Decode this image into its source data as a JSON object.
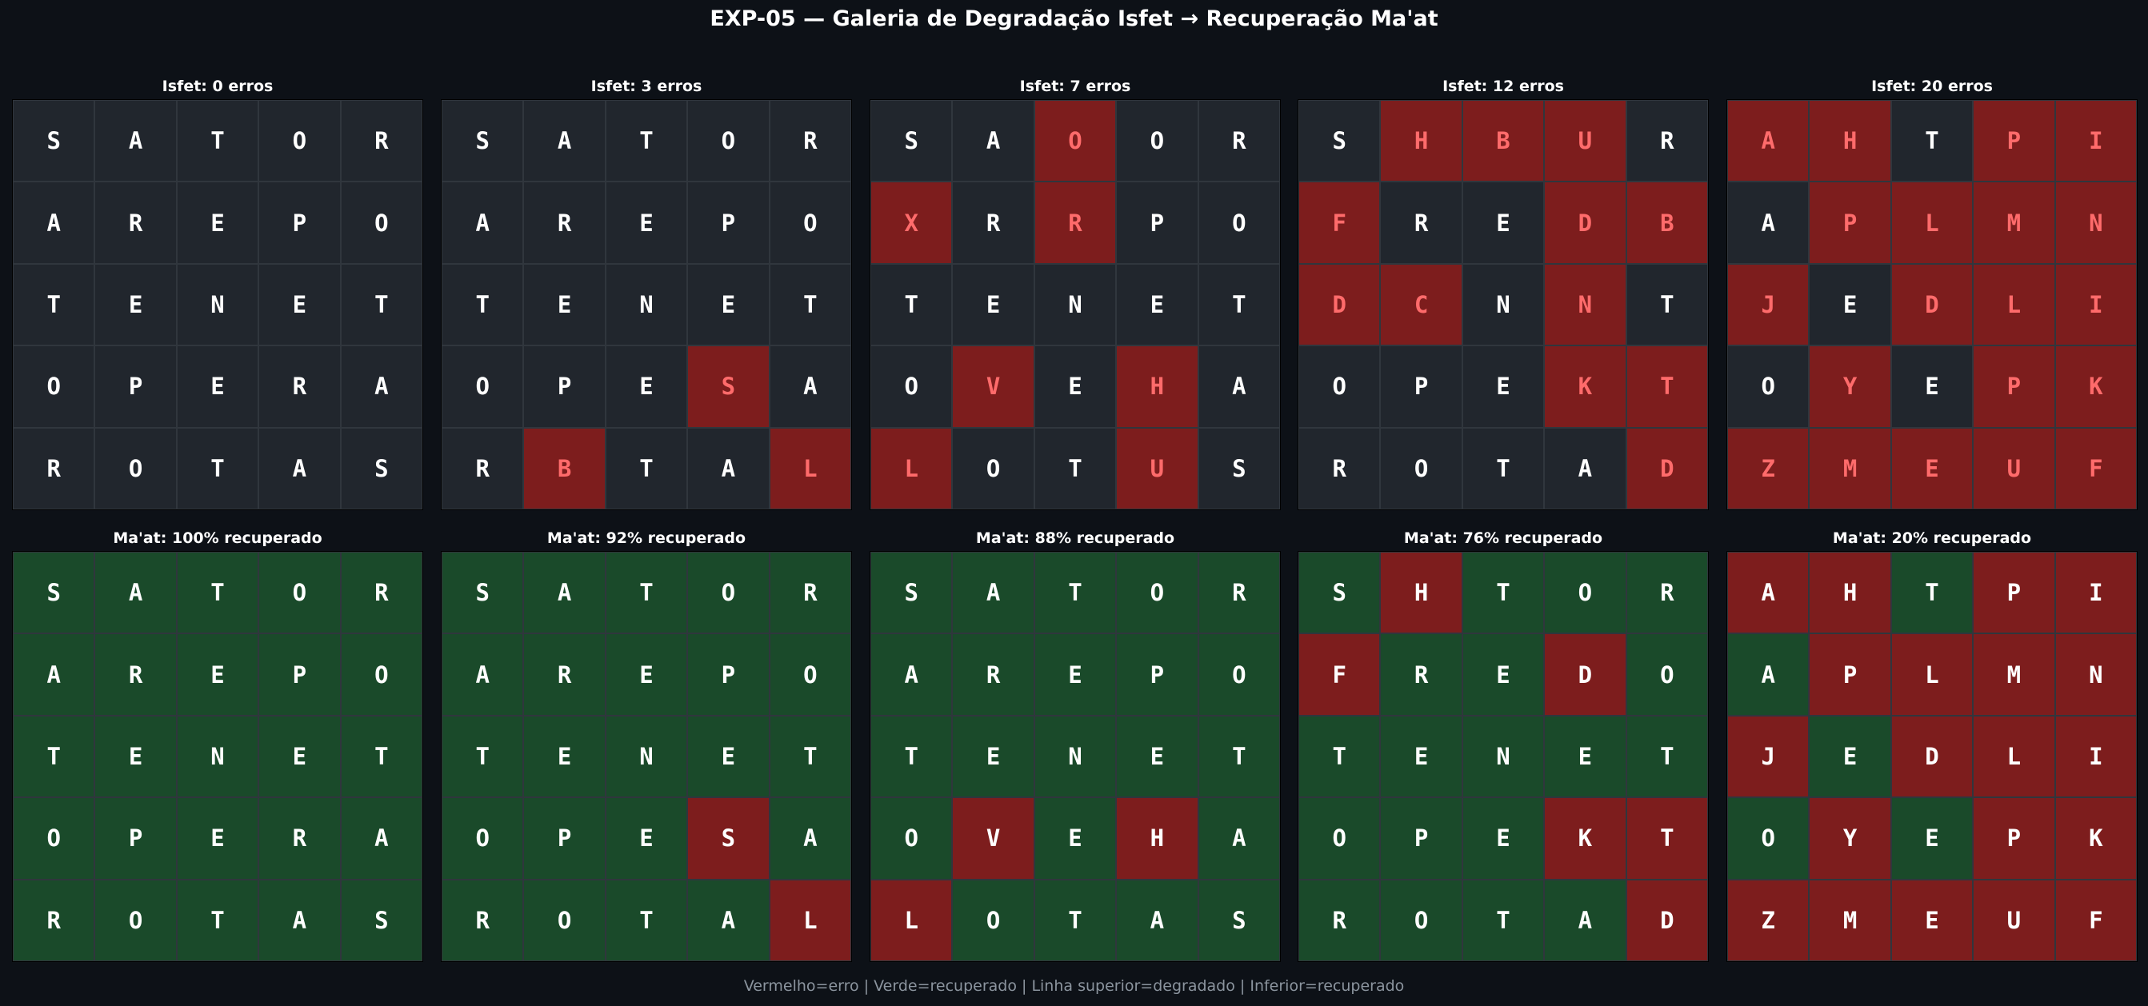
{
  "title": "EXP-05 — Galeria de Degradação Isfet → Recuperação Ma'at",
  "footer": "Vermelho=erro | Verde=recuperado | Linha superior=degradado | Inferior=recuperado",
  "colors": {
    "background": "#0d1117",
    "neutral_cell": "#21262d",
    "error_cell": "#7d1d1d",
    "recovered_cell": "#1a4a2a",
    "error_text": "#ff6b6b",
    "normal_text": "#ffffff"
  },
  "chart_data": [
    {
      "type": "heatmap",
      "row": "degraded",
      "title": "Isfet: 0 erros",
      "grid": [
        "SATOR",
        "AREPO",
        "TENET",
        "OPERA",
        "ROTAS"
      ],
      "errors": [
        "00000",
        "00000",
        "00000",
        "00000",
        "00000"
      ]
    },
    {
      "type": "heatmap",
      "row": "degraded",
      "title": "Isfet: 3 erros",
      "grid": [
        "SATOR",
        "AREPO",
        "TENET",
        "OPESA",
        "RBTAL"
      ],
      "errors": [
        "00000",
        "00000",
        "00000",
        "00010",
        "01001"
      ]
    },
    {
      "type": "heatmap",
      "row": "degraded",
      "title": "Isfet: 7 erros",
      "grid": [
        "SAOOR",
        "XRRPO",
        "TENET",
        "OVEHA",
        "LOTUS"
      ],
      "errors": [
        "00100",
        "10100",
        "00000",
        "01010",
        "10010"
      ]
    },
    {
      "type": "heatmap",
      "row": "degraded",
      "title": "Isfet: 12 erros",
      "grid": [
        "SHBUR",
        "FREDB",
        "DCNNT",
        "OPEKT",
        "ROTAD"
      ],
      "errors": [
        "01110",
        "10011",
        "11010",
        "00011",
        "00001"
      ]
    },
    {
      "type": "heatmap",
      "row": "degraded",
      "title": "Isfet: 20 erros",
      "grid": [
        "AHTPI",
        "APLMN",
        "JEDLI",
        "OYEPK",
        "ZMEUF"
      ],
      "errors": [
        "11011",
        "01111",
        "10111",
        "01011",
        "11111"
      ]
    },
    {
      "type": "heatmap",
      "row": "recovered",
      "title": "Ma'at: 100% recuperado",
      "grid": [
        "SATOR",
        "AREPO",
        "TENET",
        "OPERA",
        "ROTAS"
      ],
      "errors": [
        "00000",
        "00000",
        "00000",
        "00000",
        "00000"
      ]
    },
    {
      "type": "heatmap",
      "row": "recovered",
      "title": "Ma'at: 92% recuperado",
      "grid": [
        "SATOR",
        "AREPO",
        "TENET",
        "OPESA",
        "ROTAL"
      ],
      "errors": [
        "00000",
        "00000",
        "00000",
        "00010",
        "00001"
      ]
    },
    {
      "type": "heatmap",
      "row": "recovered",
      "title": "Ma'at: 88% recuperado",
      "grid": [
        "SATOR",
        "AREPO",
        "TENET",
        "OVEHA",
        "LOTAS"
      ],
      "errors": [
        "00000",
        "00000",
        "00000",
        "01010",
        "10000"
      ]
    },
    {
      "type": "heatmap",
      "row": "recovered",
      "title": "Ma'at: 76% recuperado",
      "grid": [
        "SHTOR",
        "FREDO",
        "TENET",
        "OPEKT",
        "ROTAD"
      ],
      "errors": [
        "01000",
        "10010",
        "00000",
        "00011",
        "00001"
      ]
    },
    {
      "type": "heatmap",
      "row": "recovered",
      "title": "Ma'at: 20% recuperado",
      "grid": [
        "AHTPI",
        "APLMN",
        "JEDLI",
        "OYEPK",
        "ZMEUF"
      ],
      "errors": [
        "11011",
        "01111",
        "10111",
        "01011",
        "11111"
      ]
    }
  ]
}
